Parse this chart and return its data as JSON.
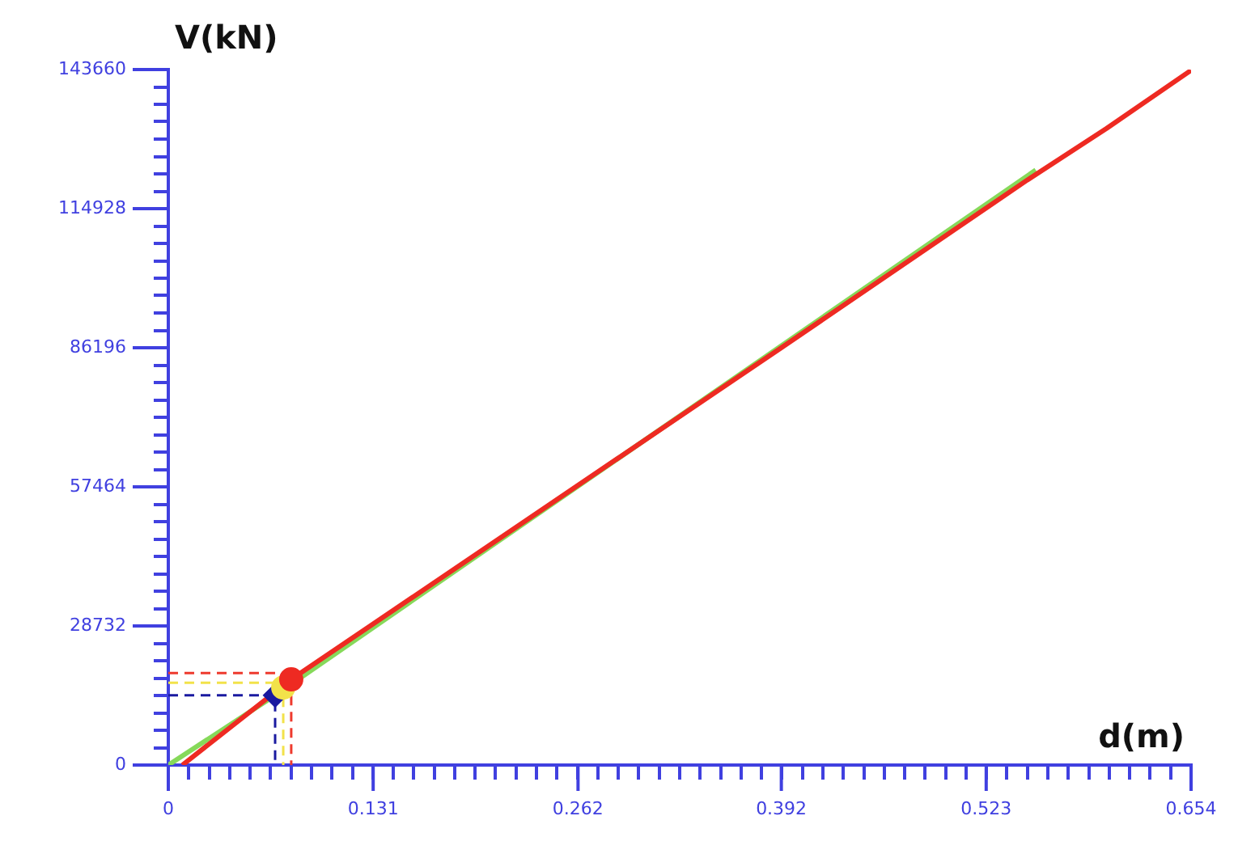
{
  "chart_data": {
    "type": "line",
    "xlabel": "d(m)",
    "ylabel": "V(kN)",
    "xlim": [
      0,
      0.654
    ],
    "ylim": [
      0,
      143660
    ],
    "xticks": [
      0,
      {
        "value": 0.01308,
        "label": null
      },
      {
        "value": 0.02616,
        "label": null
      },
      {
        "value": 0.03924,
        "label": null
      },
      {
        "value": 0.05232,
        "label": null
      },
      {
        "value": 0.0654,
        "label": null
      },
      {
        "value": 0.07848,
        "label": null
      },
      {
        "value": 0.09156,
        "label": null
      },
      {
        "value": 0.10464,
        "label": null
      },
      {
        "value": 0.11772,
        "label": null
      },
      0.131,
      {
        "value": 0.14388,
        "label": null
      },
      {
        "value": 0.15696,
        "label": null
      },
      {
        "value": 0.17004,
        "label": null
      },
      {
        "value": 0.18312,
        "label": null
      },
      {
        "value": 0.1962,
        "label": null
      },
      {
        "value": 0.20928,
        "label": null
      },
      {
        "value": 0.22236,
        "label": null
      },
      {
        "value": 0.23544,
        "label": null
      },
      {
        "value": 0.24852,
        "label": null
      },
      0.262,
      {
        "value": 0.27468,
        "label": null
      },
      {
        "value": 0.28776,
        "label": null
      },
      {
        "value": 0.30084,
        "label": null
      },
      {
        "value": 0.31392,
        "label": null
      },
      {
        "value": 0.327,
        "label": null
      },
      {
        "value": 0.34008,
        "label": null
      },
      {
        "value": 0.35316,
        "label": null
      },
      {
        "value": 0.36624,
        "label": null
      },
      {
        "value": 0.37932,
        "label": null
      },
      0.392,
      {
        "value": 0.40548,
        "label": null
      },
      {
        "value": 0.41856,
        "label": null
      },
      {
        "value": 0.43164,
        "label": null
      },
      {
        "value": 0.44472,
        "label": null
      },
      {
        "value": 0.4578,
        "label": null
      },
      {
        "value": 0.47088,
        "label": null
      },
      {
        "value": 0.48396,
        "label": null
      },
      {
        "value": 0.49704,
        "label": null
      },
      {
        "value": 0.51012,
        "label": null
      },
      0.523,
      {
        "value": 0.53628,
        "label": null
      },
      {
        "value": 0.54936,
        "label": null
      },
      {
        "value": 0.56244,
        "label": null
      },
      {
        "value": 0.57552,
        "label": null
      },
      {
        "value": 0.5886,
        "label": null
      },
      {
        "value": 0.60168,
        "label": null
      },
      {
        "value": 0.61476,
        "label": null
      },
      {
        "value": 0.62784,
        "label": null
      },
      {
        "value": 0.64092,
        "label": null
      },
      0.654
    ],
    "yticks": [
      0,
      {
        "value": 3591.5,
        "label": null
      },
      {
        "value": 7183,
        "label": null
      },
      {
        "value": 10774.5,
        "label": null
      },
      {
        "value": 14366,
        "label": null
      },
      {
        "value": 17957.5,
        "label": null
      },
      {
        "value": 21549,
        "label": null
      },
      {
        "value": 25140.5,
        "label": null
      },
      28732,
      {
        "value": 32323.5,
        "label": null
      },
      {
        "value": 35915,
        "label": null
      },
      {
        "value": 39506.5,
        "label": null
      },
      {
        "value": 43098,
        "label": null
      },
      {
        "value": 46689.5,
        "label": null
      },
      {
        "value": 50281,
        "label": null
      },
      {
        "value": 53872.5,
        "label": null
      },
      57464,
      {
        "value": 61055.5,
        "label": null
      },
      {
        "value": 64647,
        "label": null
      },
      {
        "value": 68238.5,
        "label": null
      },
      {
        "value": 71830,
        "label": null
      },
      {
        "value": 75421.5,
        "label": null
      },
      {
        "value": 79013,
        "label": null
      },
      {
        "value": 82604.5,
        "label": null
      },
      86196,
      {
        "value": 89787.5,
        "label": null
      },
      {
        "value": 93379,
        "label": null
      },
      {
        "value": 96970.5,
        "label": null
      },
      {
        "value": 100562,
        "label": null
      },
      {
        "value": 104153.5,
        "label": null
      },
      {
        "value": 107745,
        "label": null
      },
      {
        "value": 111336.5,
        "label": null
      },
      114928,
      {
        "value": 118519.5,
        "label": null
      },
      {
        "value": 122111,
        "label": null
      },
      {
        "value": 125702.5,
        "label": null
      },
      {
        "value": 129294,
        "label": null
      },
      {
        "value": 132885.5,
        "label": null
      },
      {
        "value": 136477,
        "label": null
      },
      {
        "value": 140068.5,
        "label": null
      },
      143660
    ],
    "grid": false,
    "legend": false,
    "series": [
      {
        "type": "line",
        "color": "#ee3a2e",
        "line_style": "dashed",
        "marker": "none",
        "x": [
          0,
          0.0786,
          0.0786
        ],
        "values": [
          19000,
          19000,
          0
        ]
      },
      {
        "type": "line",
        "color": "#f2e24a",
        "line_style": "dashed",
        "marker": "none",
        "x": [
          0,
          0.0735,
          0.0735
        ],
        "values": [
          17000,
          17000,
          0
        ]
      },
      {
        "type": "line",
        "color": "#1a1aa0",
        "line_style": "dashed",
        "marker": "none",
        "x": [
          0,
          0.0683,
          0.0683
        ],
        "values": [
          14400,
          14400,
          0
        ]
      },
      {
        "type": "line",
        "color": "#ee2a22",
        "line_style": "solid",
        "marker": "none",
        "x": [
          0.009,
          0.0786,
          0.392,
          0.55,
          0.6,
          0.654
        ],
        "values": [
          0,
          17700,
          86200,
          121000,
          131500,
          143500
        ]
      },
      {
        "type": "line",
        "color": "#86d95a",
        "line_style": "solid",
        "marker": "none",
        "x": [
          0,
          0.0683,
          0.5547
        ],
        "values": [
          0,
          14400,
          122900
        ]
      },
      {
        "type": "scatter",
        "color": "#ee2a22",
        "marker": "circle",
        "x": [
          0.0786
        ],
        "values": [
          17700
        ]
      },
      {
        "type": "scatter",
        "color": "#f2e24a",
        "marker": "circle",
        "x": [
          0.0735
        ],
        "values": [
          16000
        ]
      },
      {
        "type": "scatter",
        "color": "#1a1aa0",
        "marker": "diamond",
        "x": [
          0.0683
        ],
        "values": [
          14400
        ]
      }
    ]
  }
}
